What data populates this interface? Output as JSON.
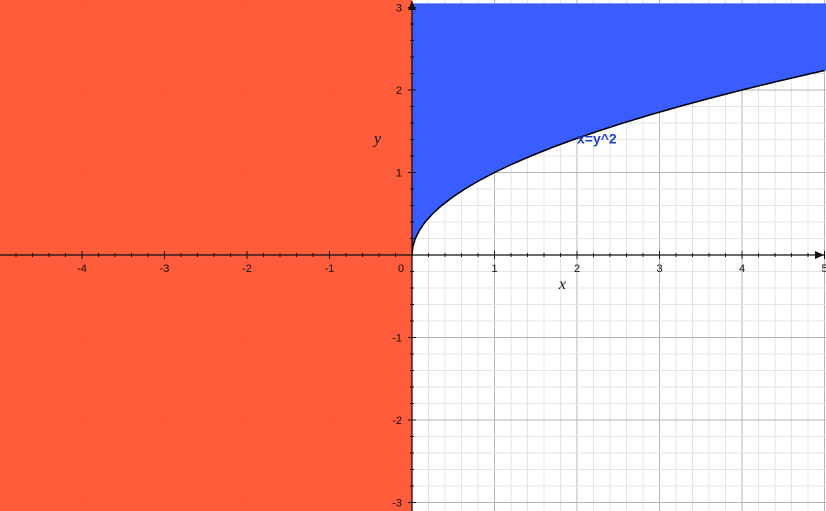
{
  "chart_data": {
    "type": "area",
    "xlim": [
      -5,
      5
    ],
    "ylim": [
      -3,
      3
    ],
    "xlabel": "x",
    "ylabel": "y",
    "grid": true,
    "minor_grid_per_unit": 5,
    "x_ticks": [
      -4,
      -3,
      -2,
      -1,
      0,
      1,
      2,
      3,
      4,
      5
    ],
    "y_ticks": [
      -3,
      -2,
      -1,
      1,
      2,
      3
    ],
    "regions": [
      {
        "description": "x < 0",
        "x_range": [
          -5,
          0
        ],
        "y_range": [
          -3,
          3
        ],
        "color": "#ff5533"
      },
      {
        "description": "x < y^2, y > 0",
        "x_range": [
          0,
          5
        ],
        "y_range": [
          0,
          3
        ],
        "color": "#3a5dff"
      }
    ],
    "curve": {
      "label": "x=y^2",
      "label_color": "#1f3fcc",
      "label_at": [
        2,
        1.35
      ],
      "points": [
        [
          0,
          0
        ],
        [
          0.01,
          0.1
        ],
        [
          0.04,
          0.2
        ],
        [
          0.09,
          0.3
        ],
        [
          0.16,
          0.4
        ],
        [
          0.25,
          0.5
        ],
        [
          0.36,
          0.6
        ],
        [
          0.49,
          0.7
        ],
        [
          0.64,
          0.8
        ],
        [
          0.81,
          0.9
        ],
        [
          1,
          1
        ],
        [
          1.21,
          1.1
        ],
        [
          1.44,
          1.2
        ],
        [
          1.69,
          1.3
        ],
        [
          1.96,
          1.4
        ],
        [
          2.25,
          1.5
        ],
        [
          2.56,
          1.6
        ],
        [
          2.89,
          1.7
        ],
        [
          3.24,
          1.8
        ],
        [
          3.61,
          1.9
        ],
        [
          4,
          2
        ],
        [
          4.41,
          2.1
        ],
        [
          4.84,
          2.2
        ],
        [
          5,
          2.236
        ]
      ]
    }
  }
}
